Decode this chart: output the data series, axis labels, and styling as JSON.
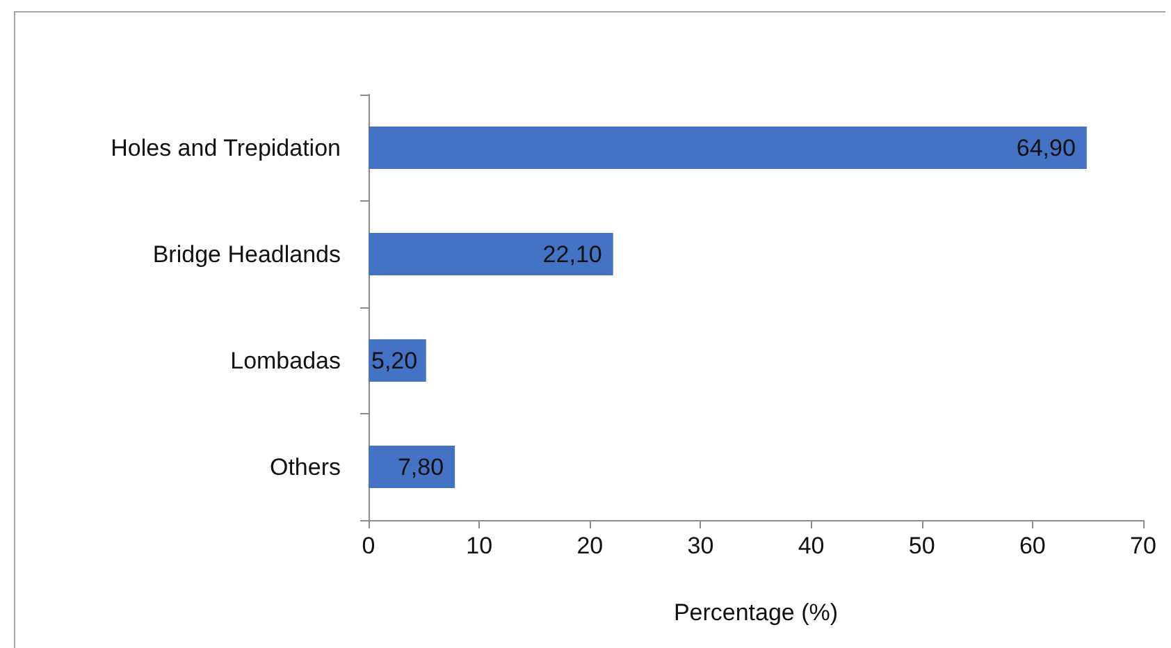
{
  "chart_data": {
    "type": "bar",
    "orientation": "horizontal",
    "categories": [
      "Holes and Trepidation",
      "Bridge Headlands",
      "Lombadas",
      "Others"
    ],
    "values": [
      64.9,
      22.1,
      5.2,
      7.8
    ],
    "value_labels": [
      "64,90",
      "22,10",
      "5,20",
      "7,80"
    ],
    "color": "#4472c4",
    "xlabel": "Percentage (%)",
    "xlim": [
      0,
      70
    ],
    "xticks": [
      0,
      10,
      20,
      30,
      40,
      50,
      60,
      70
    ],
    "grid": false
  }
}
